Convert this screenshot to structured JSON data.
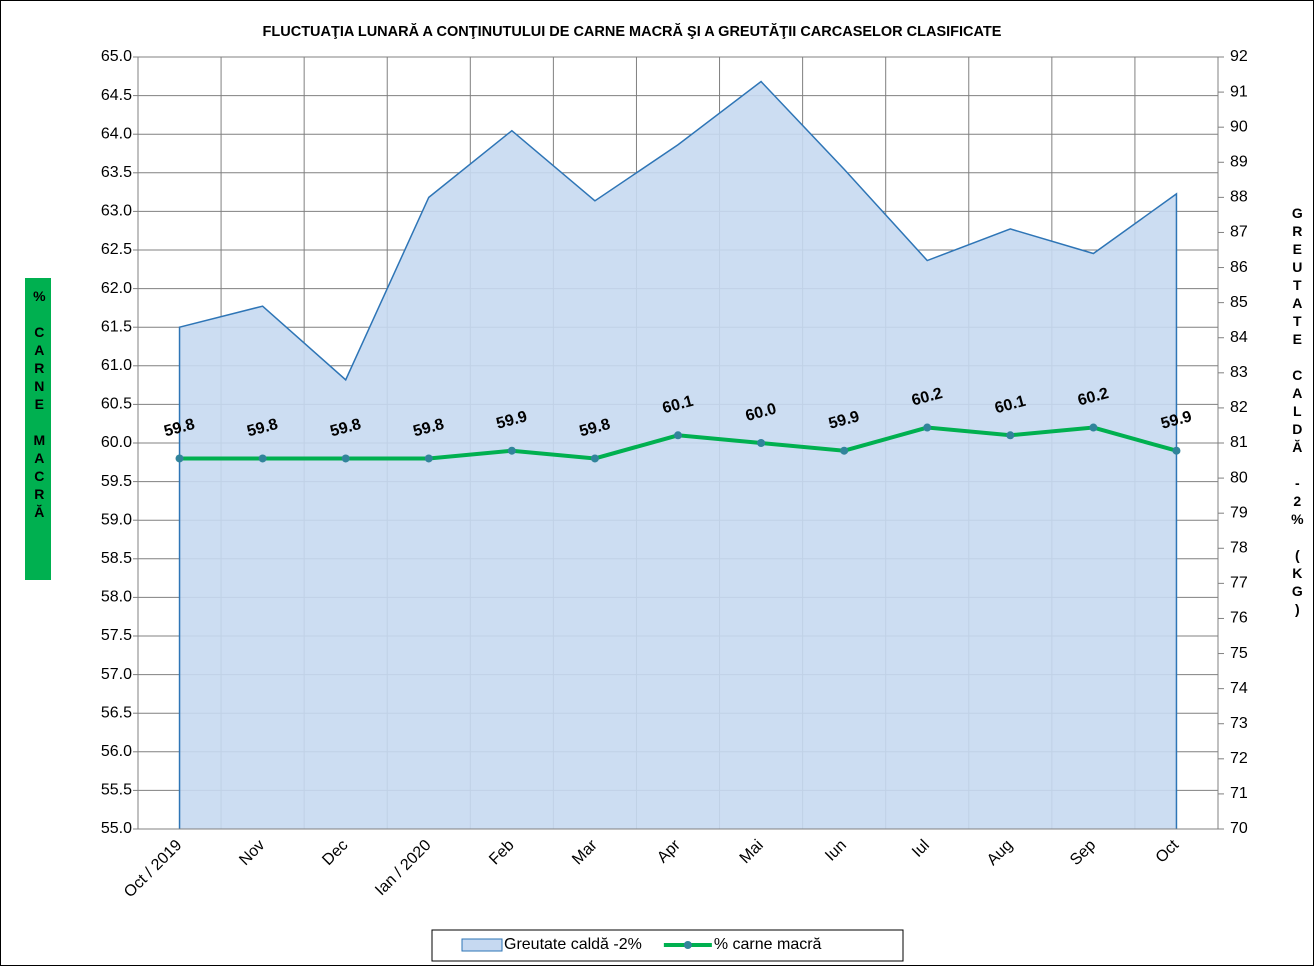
{
  "chart_data": {
    "type": "area-line",
    "title": "FLUCTUAŢIA LUNARĂ   A CONŢINUTULUI DE CARNE MACRĂ ŞI A GREUTĂŢII CARCASELOR CLASIFICATE",
    "ylabel": "% CARNE MACRĂ",
    "y2label": "GREUTATE CALDĂ -2% (KG)",
    "categories": [
      "Oct / 2019",
      "Nov",
      "Dec",
      "Ian / 2020",
      "Feb",
      "Mar",
      "Apr",
      "Mai",
      "Iun",
      "Iul",
      "Aug",
      "Sep",
      "Oct"
    ],
    "series": [
      {
        "name": "Greutate caldă -2%",
        "type": "area",
        "axis": "y2",
        "color": "#c6d9f1",
        "line_color": "#2e75b6",
        "values": [
          84.3,
          84.9,
          82.8,
          88.0,
          89.9,
          87.9,
          89.5,
          91.3,
          88.8,
          86.2,
          87.1,
          86.4,
          88.1
        ]
      },
      {
        "name": "% carne macră",
        "type": "line",
        "axis": "y",
        "color": "#00b050",
        "marker_color": "#31849b",
        "values": [
          59.8,
          59.8,
          59.8,
          59.8,
          59.9,
          59.8,
          60.1,
          60.0,
          59.9,
          60.2,
          60.1,
          60.2,
          59.9
        ],
        "value_labels": [
          "59.8",
          "59.8",
          "59.8",
          "59.8",
          "59.9",
          "59.8",
          "60.1",
          "60.0",
          "59.9",
          "60.2",
          "60.1",
          "60.2",
          "59.9"
        ]
      }
    ],
    "ylim": [
      55,
      65
    ],
    "yticks": [
      {
        "value": 55,
        "label": "55.0"
      },
      55.5,
      {
        "value": 56,
        "label": "56.0"
      },
      56.5,
      {
        "value": 57,
        "label": "57.0"
      },
      57.5,
      {
        "value": 58,
        "label": "58.0"
      },
      58.5,
      {
        "value": 59,
        "label": "59.0"
      },
      59.5,
      {
        "value": 60,
        "label": "60.0"
      },
      60.5,
      {
        "value": 61,
        "label": "61.0"
      },
      61.5,
      {
        "value": 62,
        "label": "62.0"
      },
      62.5,
      {
        "value": 63,
        "label": "63.0"
      },
      63.5,
      {
        "value": 64,
        "label": "64.0"
      },
      64.5,
      {
        "value": 65,
        "label": "65.0"
      }
    ],
    "y2lim": [
      70,
      92
    ],
    "y2ticks": [
      70,
      71,
      72,
      73,
      74,
      75,
      76,
      77,
      78,
      79,
      80,
      81,
      82,
      83,
      84,
      85,
      86,
      87,
      88,
      89,
      90,
      91,
      92
    ],
    "grid": true,
    "legend": "bottom"
  }
}
